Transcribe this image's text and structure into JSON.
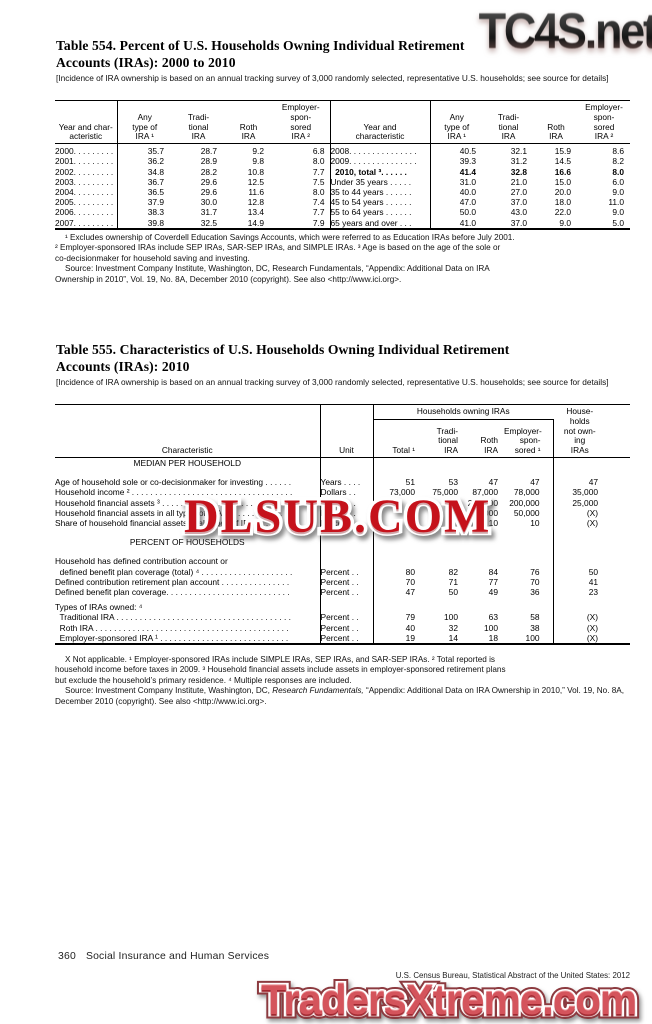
{
  "watermarks": {
    "top": "TC4S.net",
    "middle": "DLSUB.COM",
    "bottom": "TradersXtreme.com"
  },
  "notes": {
    "survey": "[Incidence of IRA ownership is based on  an annual tracking survey of 3,000 randomly selected, representative U.S. households; see source for details]"
  },
  "footer": {
    "page_number": "360",
    "section": "Social Insurance and Human Services",
    "credit": "U.S. Census Bureau, Statistical Abstract of the United States: 2012"
  },
  "table554": {
    "title_line1": "Table 554. Percent of U.S. Households Owning Individual Retirement",
    "title_line2": "Accounts (IRAs): 2000 to 2010",
    "headers": {
      "stub_left": "Year and char-\nacteristic",
      "stub_right": "Year and\ncharacteristic",
      "any": "Any\ntype of\nIRA ¹",
      "trad": "Tradi-\ntional\nIRA",
      "roth": "Roth\nIRA",
      "empl": "Employer-\nspon-\nsored\nIRA ²"
    },
    "left_rows": [
      {
        "label": "2000. . . . . . . . .",
        "v": [
          "35.7",
          "28.7",
          "9.2",
          "6.8"
        ]
      },
      {
        "label": "2001. . . . . . . . .",
        "v": [
          "36.2",
          "28.9",
          "9.8",
          "8.0"
        ]
      },
      {
        "label": "2002. . . . . . . . .",
        "v": [
          "34.8",
          "28.2",
          "10.8",
          "7.7"
        ]
      },
      {
        "label": "2003. . . . . . . . .",
        "v": [
          "36.7",
          "29.6",
          "12.5",
          "7.5"
        ]
      },
      {
        "label": "2004. . . . . . . . .",
        "v": [
          "36.5",
          "29.6",
          "11.6",
          "8.0"
        ]
      },
      {
        "label": "2005. . . . . . . . .",
        "v": [
          "37.9",
          "30.0",
          "12.8",
          "7.4"
        ]
      },
      {
        "label": "2006. . . . . . . . .",
        "v": [
          "38.3",
          "31.7",
          "13.4",
          "7.7"
        ]
      },
      {
        "label": "2007. . . . . . . . .",
        "v": [
          "39.8",
          "32.5",
          "14.9",
          "7.9"
        ]
      }
    ],
    "right_rows": [
      {
        "label": "2008. . . . . . . . . . . . . . .",
        "bold": false,
        "v": [
          "40.5",
          "32.1",
          "15.9",
          "8.6"
        ]
      },
      {
        "label": "2009. . . . . . . . . . . . . . .",
        "bold": false,
        "v": [
          "39.3",
          "31.2",
          "14.5",
          "8.2"
        ]
      },
      {
        "label": "  2010, total ³. . . . . .",
        "bold": true,
        "v": [
          "41.4",
          "32.8",
          "16.6",
          "8.0"
        ]
      },
      {
        "label": "Under 35 years . . . . .",
        "bold": false,
        "v": [
          "31.0",
          "21.0",
          "15.0",
          "6.0"
        ]
      },
      {
        "label": "35 to 44 years . . . . . .",
        "bold": false,
        "v": [
          "40.0",
          "27.0",
          "20.0",
          "9.0"
        ]
      },
      {
        "label": "45 to 54 years . . . . . .",
        "bold": false,
        "v": [
          "47.0",
          "37.0",
          "18.0",
          "11.0"
        ]
      },
      {
        "label": "55 to 64 years . . . . . .",
        "bold": false,
        "v": [
          "50.0",
          "43.0",
          "22.0",
          "9.0"
        ]
      },
      {
        "label": "65 years and over . . .",
        "bold": false,
        "v": [
          "41.0",
          "37.0",
          "9.0",
          "5.0"
        ]
      }
    ],
    "footnote": "¹ Excludes ownership of Coverdell Education Savings Accounts, which were referred to as Education IRAs before July 2001.\n² Employer-sponsored IRAs include SEP IRAs, SAR-SEP IRAs, and SIMPLE IRAs. ³ Age is based on the age of the sole or\nco-decisionmaker for household saving and investing.",
    "source": "Source: Investment Company Institute, Washington, DC, Research Fundamentals,  “Appendix: Additional Data on IRA\nOwnership in 2010”, Vol. 19, No. 8A, December 2010 (copyright). See also <http://www.ici.org>."
  },
  "table555": {
    "title_line1": "Table 555. Characteristics of U.S. Households Owning Individual Retirement",
    "title_line2": "Accounts (IRAs): 2010",
    "headers": {
      "characteristic": "Characteristic",
      "unit": "Unit",
      "group": "Households owning IRAs",
      "total": "Total ¹",
      "trad": "Tradi-\ntional\nIRA",
      "roth": "Roth\nIRA",
      "empl": "Employer-\nspon-\nsored ¹",
      "notown": "House-\nholds\nnot own-\ning\nIRAs"
    },
    "rows": [
      {
        "type": "section",
        "label": "MEDIAN PER HOUSEHOLD"
      },
      {
        "type": "gap"
      },
      {
        "type": "row",
        "label": "Age of household sole or co-decisionmaker for investing . . . . . .",
        "unit": "Years . . . .",
        "v": [
          "51",
          "53",
          "47",
          "47",
          "47"
        ]
      },
      {
        "type": "row",
        "label": "Household income ² . . . . . . . . . . . . . . . . . . . . . . . . . . . . . . . . . . .",
        "unit": "Dollars . .",
        "v": [
          "73,000",
          "75,000",
          "87,000",
          "78,000",
          "35,000"
        ]
      },
      {
        "type": "row",
        "label": "Household financial assets ³ . . . . . . . . . . . . . . . . . . . . . . . . . . . .",
        "unit": "Dollars . .",
        "v": [
          "",
          "",
          "200,000",
          "200,000",
          "25,000"
        ]
      },
      {
        "type": "row",
        "label": "Household financial assets in all types of IRAs . . . . . . . . . . . . .",
        "unit": "Dollars . .",
        "v": [
          "",
          "",
          "40,000",
          "50,000",
          "(X)"
        ]
      },
      {
        "type": "row",
        "label": "Share of household financial assets in all types of IRAs . . . . .",
        "unit": "Percent . .",
        "v": [
          "",
          "",
          "10",
          "10",
          "(X)"
        ]
      },
      {
        "type": "gap"
      },
      {
        "type": "section",
        "label": "PERCENT OF HOUSEHOLDS"
      },
      {
        "type": "gap"
      },
      {
        "type": "row",
        "label": "Household has defined contribution account or\n  defined benefit plan coverage (total) ⁴ . . . . . . . . . . . . . . . . . . . .",
        "unit": "Percent . .",
        "v": [
          "80",
          "82",
          "84",
          "76",
          "50"
        ]
      },
      {
        "type": "row",
        "label": "Defined contribution retirement plan account . . . . . . . . . . . . . . .",
        "unit": "Percent . .",
        "v": [
          "70",
          "71",
          "77",
          "70",
          "41"
        ]
      },
      {
        "type": "row",
        "label": "Defined benefit plan coverage. . . . . . . . . . . . . . . . . . . . . . . . . . .",
        "unit": "Percent . .",
        "v": [
          "47",
          "50",
          "49",
          "36",
          "23"
        ]
      },
      {
        "type": "gapsm"
      },
      {
        "type": "label",
        "label": "Types of IRAs owned: ⁴"
      },
      {
        "type": "row",
        "label": "  Traditional IRA . . . . . . . . . . . . . . . . . . . . . . . . . . . . . . . . . . . . . .",
        "unit": "Percent . .",
        "v": [
          "79",
          "100",
          "63",
          "58",
          "(X)"
        ]
      },
      {
        "type": "row",
        "label": "  Roth IRA . . . . . . . . . . . . . . . . . . . . . . . . . . . . . . . . . . . . . . . . . .",
        "unit": "Percent . .",
        "v": [
          "40",
          "32",
          "100",
          "38",
          "(X)"
        ]
      },
      {
        "type": "row",
        "label": "  Employer-sponsored IRA ¹ . . . . . . . . . . . . . . . . . . . . . . . . . . . .",
        "unit": "Percent . .",
        "v": [
          "19",
          "14",
          "18",
          "100",
          "(X)"
        ]
      }
    ],
    "footnote": "X Not applicable. ¹ Employer-sponsored IRAs include SIMPLE IRAs, SEP IRAs, and SAR-SEP IRAs. ² Total reported is\nhousehold income before taxes in 2009. ³ Household financial assets include assets in employer-sponsored retirement plans\nbut exclude the household’s primary residence. ⁴ Multiple responses are included.",
    "source_prefix": "Source: Investment Company Institute, Washington, DC, ",
    "source_italic": "Research Fundamentals,",
    "source_suffix": " “Appendix: Additional Data on IRA Ownership in 2010,” Vol. 19, No. 8A, December 2010 (copyright). See also <http://www.ici.org>."
  }
}
